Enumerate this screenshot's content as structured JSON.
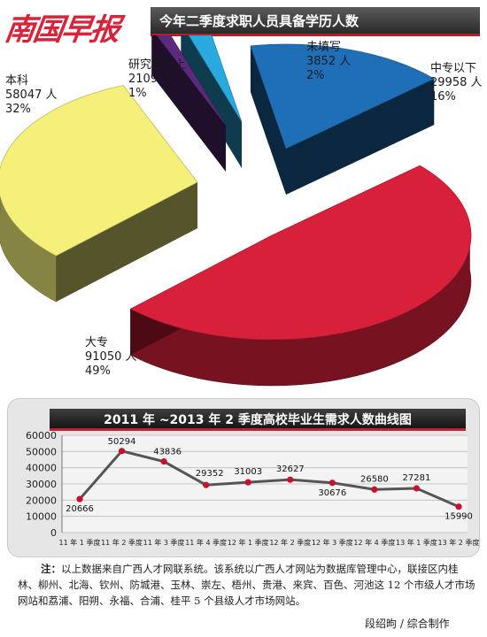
{
  "masthead": "南国早报",
  "note_lead": "注：",
  "note": "以上数据来自广西人才网联系统。该系统以广西人才网站为数据库管理中心，联接区内桂林、柳州、北海、钦州、防城港、玉林、崇左、梧州、贵港、来宾、百色、河池这 12 个市级人才市场网站和荔浦、阳朔、永福、合浦、桂平 5 个县级人才市场网站。",
  "credit": "段绍昫 / 综合制作",
  "chart_data": [
    {
      "type": "pie",
      "title": "今年二季度求职人员具备学历人数",
      "slices": [
        {
          "name": "中专以下",
          "value": 29958,
          "value_label": "29958 人",
          "percent": "16%",
          "color": "#1f6fb8"
        },
        {
          "name": "大专",
          "value": 91050,
          "value_label": "91050 人",
          "percent": "49%",
          "color": "#d8203a"
        },
        {
          "name": "本科",
          "value": 58047,
          "value_label": "58047 人",
          "percent": "32%",
          "color": "#f4f07a"
        },
        {
          "name": "研究生以上",
          "value": 2109,
          "value_label": "2109 人",
          "percent": "1%",
          "color": "#5b2a7c"
        },
        {
          "name": "未填写",
          "value": 3852,
          "value_label": "3852 人",
          "percent": "2%",
          "color": "#29a9dd"
        }
      ]
    },
    {
      "type": "line",
      "title": "2011 年 ~2013 年 2 季度高校毕业生需求人数曲线图",
      "categories": [
        "11 年 1 季度",
        "11 年 2 季度",
        "11 年 3 季度",
        "11 年 4 季度",
        "12 年 1 季度",
        "12 年 2 季度",
        "12 年 3 季度",
        "12 年 4 季度",
        "13 年 1 季度",
        "13 年 2 季度"
      ],
      "values": [
        20666,
        50294,
        43836,
        29352,
        31003,
        32627,
        30676,
        26580,
        27281,
        15990
      ],
      "value_labels": [
        "20666",
        "50294",
        "43836",
        "29352",
        "31003",
        "32627",
        "30676",
        "26580",
        "27281",
        "15990"
      ],
      "ylim": [
        0,
        60000
      ],
      "yticks": [
        0,
        10000,
        20000,
        30000,
        40000,
        50000,
        60000
      ],
      "ytick_labels": [
        "0",
        "10000",
        "20000",
        "30000",
        "40000",
        "50000",
        "60000"
      ],
      "grid": true,
      "line_color": "#555555",
      "marker_color": "#c8102e"
    }
  ]
}
